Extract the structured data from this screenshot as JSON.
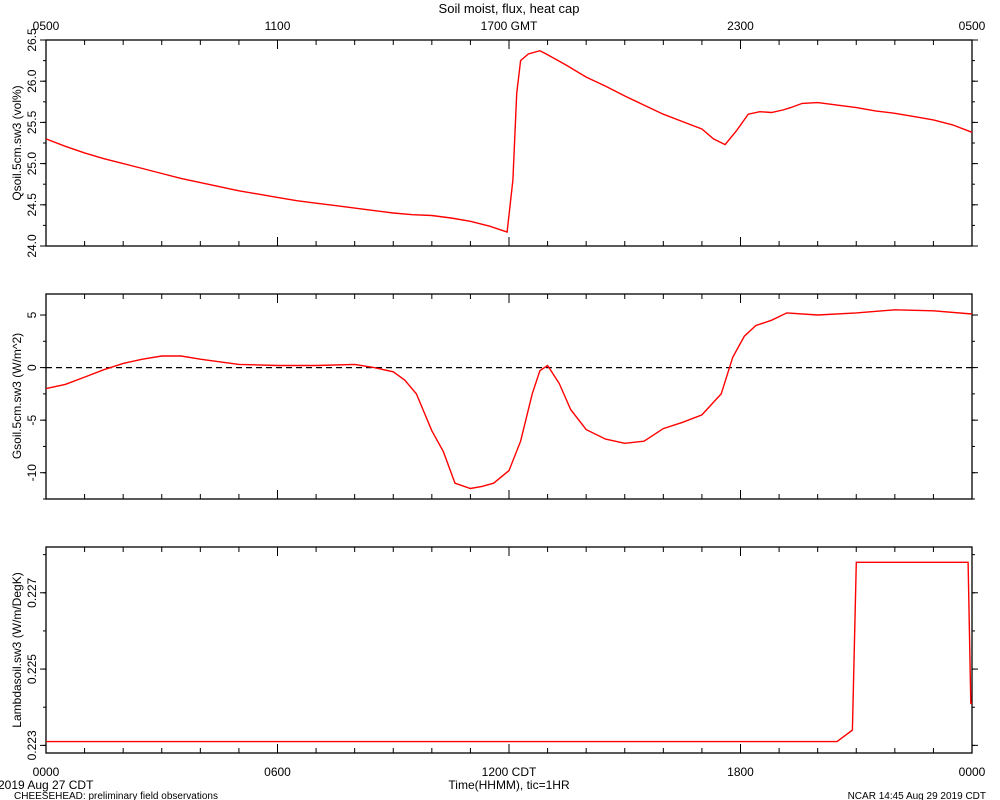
{
  "chart_data": [
    {
      "type": "line",
      "title": "Soil moist, flux, heat cap",
      "ylabel": "Qsoil.5cm.sw3 (vol%)",
      "ylim": [
        24.0,
        26.5
      ],
      "yticks": [
        "24.0",
        "24.5",
        "25.0",
        "25.5",
        "26.0",
        "26.5"
      ],
      "top_axis_ticks": [
        "0500",
        "1100",
        "1700 GMT",
        "2300",
        "0500"
      ],
      "x_hours": [
        0,
        0.5,
        1,
        1.5,
        2,
        2.5,
        3,
        3.5,
        4,
        4.5,
        5,
        5.5,
        6,
        6.5,
        7,
        7.5,
        8,
        8.5,
        9,
        9.5,
        10,
        10.5,
        11,
        11.5,
        11.95,
        12.1,
        12.2,
        12.3,
        12.5,
        12.8,
        13,
        13.5,
        14,
        14.5,
        15,
        15.5,
        16,
        16.5,
        17,
        17.3,
        17.6,
        17.9,
        18.2,
        18.5,
        18.8,
        19.1,
        19.3,
        19.6,
        20,
        20.5,
        21,
        21.5,
        22,
        22.5,
        23,
        23.5,
        24
      ],
      "series": [
        {
          "color": "#ff0000",
          "values": [
            25.3,
            25.21,
            25.13,
            25.06,
            25.0,
            24.94,
            24.88,
            24.82,
            24.77,
            24.72,
            24.67,
            24.63,
            24.59,
            24.55,
            24.52,
            24.49,
            24.46,
            24.43,
            24.4,
            24.38,
            24.37,
            24.34,
            24.3,
            24.24,
            24.17,
            24.8,
            25.85,
            26.25,
            26.33,
            26.37,
            26.32,
            26.19,
            26.05,
            25.94,
            25.82,
            25.71,
            25.6,
            25.51,
            25.42,
            25.3,
            25.23,
            25.4,
            25.6,
            25.63,
            25.62,
            25.65,
            25.68,
            25.73,
            25.74,
            25.71,
            25.68,
            25.64,
            25.61,
            25.57,
            25.53,
            25.47,
            25.38
          ]
        }
      ]
    },
    {
      "type": "line",
      "ylabel": "Gsoil.5cm.sw3 (W/m^2)",
      "ylim": [
        -12.5,
        7
      ],
      "yticks": [
        "-10",
        "-5",
        "0",
        "5"
      ],
      "zero_reference_line": true,
      "x_hours": [
        0,
        0.5,
        1,
        1.5,
        2,
        2.5,
        3,
        3.5,
        4,
        5,
        6,
        7,
        8,
        8.5,
        9,
        9.3,
        9.6,
        10,
        10.3,
        10.6,
        11,
        11.3,
        11.6,
        12,
        12.3,
        12.6,
        12.8,
        13,
        13.3,
        13.6,
        14,
        14.5,
        15,
        15.5,
        16,
        16.5,
        17,
        17.5,
        17.8,
        18.1,
        18.4,
        18.8,
        19.2,
        20,
        21,
        22,
        23,
        24
      ],
      "series": [
        {
          "color": "#ff0000",
          "values": [
            -2.0,
            -1.6,
            -0.9,
            -0.2,
            0.4,
            0.8,
            1.1,
            1.1,
            0.8,
            0.3,
            0.2,
            0.2,
            0.3,
            0.0,
            -0.4,
            -1.2,
            -2.5,
            -6.0,
            -8.0,
            -11.0,
            -11.5,
            -11.3,
            -11.0,
            -9.8,
            -7.0,
            -2.5,
            -0.3,
            0.2,
            -1.5,
            -4.0,
            -5.9,
            -6.8,
            -7.2,
            -7.0,
            -5.8,
            -5.2,
            -4.5,
            -2.5,
            1.0,
            3.0,
            4.0,
            4.5,
            5.2,
            5.0,
            5.2,
            5.5,
            5.4,
            5.1
          ]
        }
      ]
    },
    {
      "type": "line",
      "ylabel": "Lambdasoil.sw3 (W/m/DegK)",
      "ylim": [
        0.2228,
        0.2282
      ],
      "yticks": [
        "0.223",
        "0.225",
        "0.227"
      ],
      "x_hours": [
        0,
        20.5,
        20.9,
        21.0,
        23.9,
        23.97,
        24
      ],
      "series": [
        {
          "color": "#ff0000",
          "values": [
            0.2231,
            0.2231,
            0.2234,
            0.2278,
            0.2278,
            0.2241,
            0.2241
          ]
        }
      ]
    }
  ],
  "bottom_axis": {
    "ticks": [
      "0000",
      "0600",
      "1200 CDT",
      "1800",
      "0000"
    ],
    "tick_hours": [
      19,
      1,
      7,
      13,
      19
    ],
    "xlabel": "Time(HHMM), tic=1HR"
  },
  "footer": {
    "date_left": "2019 Aug 27 CDT",
    "project_note": "CHEESEHEAD: preliminary field observations",
    "timestamp_right": "NCAR 14:45 Aug 29 2019 CDT"
  }
}
